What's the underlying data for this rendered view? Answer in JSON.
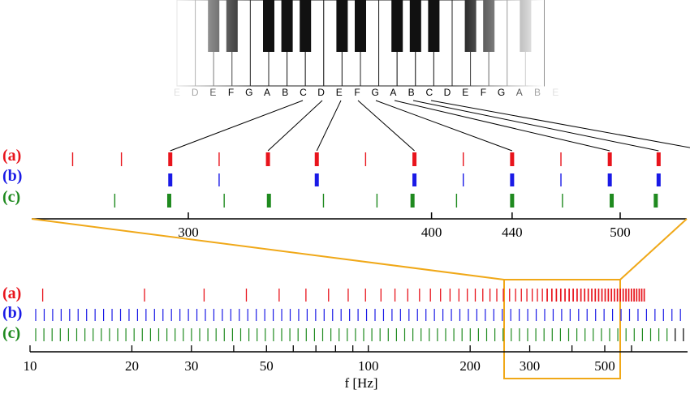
{
  "colors": {
    "a": "#e8141c",
    "b": "#1a1ae6",
    "c": "#1f8a1f",
    "zoom": "#f0a818",
    "axis": "#000000"
  },
  "keyboard": {
    "notes": [
      "E",
      "D",
      "E",
      "F",
      "G",
      "A",
      "B",
      "C",
      "D",
      "E",
      "F",
      "G",
      "A",
      "B",
      "C",
      "D",
      "E",
      "F",
      "G",
      "A",
      "B",
      "E"
    ]
  },
  "rows": {
    "a": "(a)",
    "b": "(b)",
    "c": "(c)"
  },
  "zoom_axis": {
    "ticks": [
      "300",
      "400",
      "440",
      "500"
    ]
  },
  "main_axis": {
    "ticks": [
      "10",
      "20",
      "30",
      "50",
      "100",
      "200",
      "300",
      "500"
    ],
    "xlabel": "f [Hz]"
  }
}
